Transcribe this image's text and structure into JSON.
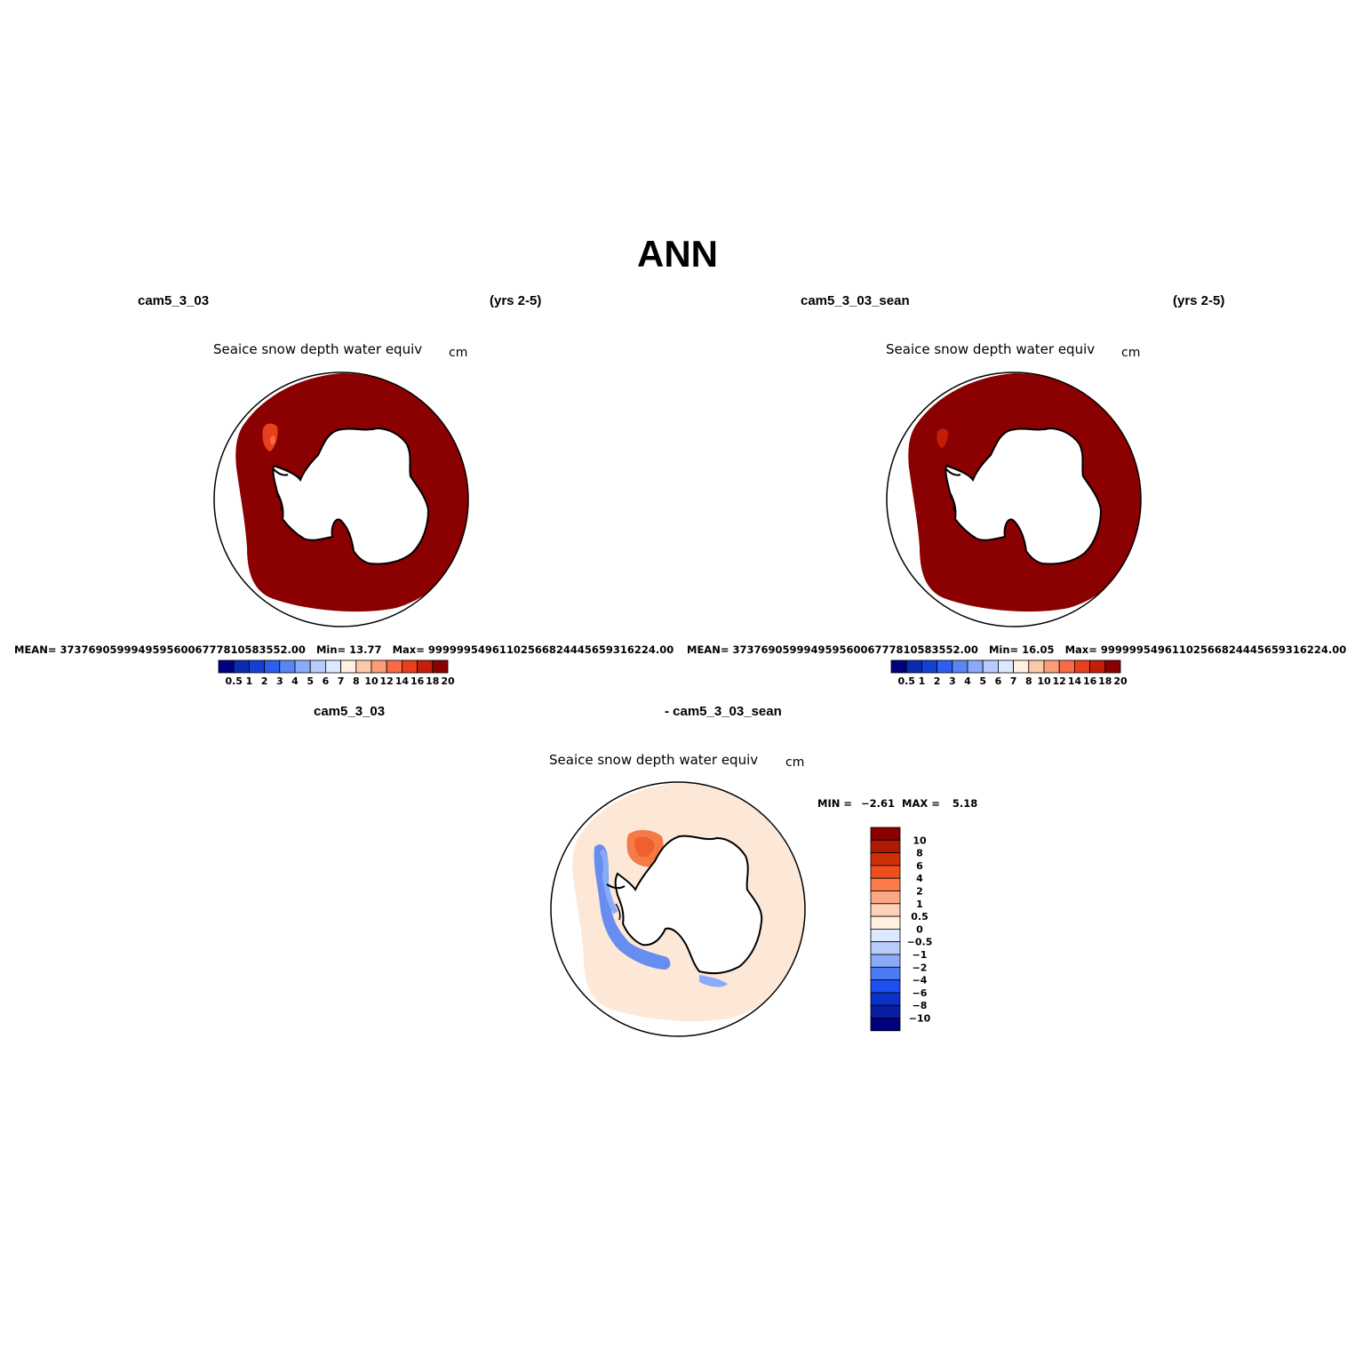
{
  "title": "ANN",
  "panels": [
    {
      "case_label": "cam5_3_03",
      "years_label": "(yrs 2-5)",
      "variable_title": "Seaice snow depth water equiv",
      "units": "cm",
      "stats": {
        "mean_label": "MEAN=",
        "mean_value": "3737690599949595600677781058355 2.00",
        "min_label": "Min=",
        "min_value": "13.77",
        "max_label": "Max=",
        "max_value": "99999954961102566824445659316224.00"
      },
      "colorbar_ticks": [
        "0.5",
        "1",
        "2",
        "3",
        "4",
        "5",
        "6",
        "7",
        "8",
        "10",
        "12",
        "14",
        "16",
        "18",
        "20"
      ],
      "colorbar_colors": [
        "#00007f",
        "#0a2bb0",
        "#1440d4",
        "#2c5ef0",
        "#5a86f5",
        "#8aaafa",
        "#b8ccfc",
        "#dce8ff",
        "#fff0e0",
        "#fccaaa",
        "#fb9d78",
        "#f96a45",
        "#e8401c",
        "#c21e08",
        "#8b0000"
      ]
    },
    {
      "case_label": "cam5_3_03_sean",
      "years_label": "(yrs 2-5)",
      "variable_title": "Seaice snow depth water equiv",
      "units": "cm",
      "stats": {
        "mean_label": "MEAN=",
        "mean_value": "37376905999495956006777810583552.00",
        "min_label": "Min=",
        "min_value": "16.05",
        "max_label": "Max=",
        "max_value": "99999954961102566824445659316224.00"
      },
      "colorbar_ticks": [
        "0.5",
        "1",
        "2",
        "3",
        "4",
        "5",
        "6",
        "7",
        "8",
        "10",
        "12",
        "14",
        "16",
        "18",
        "20"
      ],
      "colorbar_colors": [
        "#00007f",
        "#0a2bb0",
        "#1440d4",
        "#2c5ef0",
        "#5a86f5",
        "#8aaafa",
        "#b8ccfc",
        "#dce8ff",
        "#fff0e0",
        "#fccaaa",
        "#fb9d78",
        "#f96a45",
        "#e8401c",
        "#c21e08",
        "#8b0000"
      ]
    }
  ],
  "difference_panel": {
    "case_label_left": "cam5_3_03",
    "case_label_right": "- cam5_3_03_sean",
    "variable_title": "Seaice snow depth water equiv",
    "units": "cm",
    "min_label": "MIN =",
    "min_value": "−2.61",
    "max_label": "MAX =",
    "max_value": "5.18",
    "colorbar_ticks": [
      "10",
      "8",
      "6",
      "4",
      "2",
      "1",
      "0.5",
      "0",
      "−0.5",
      "−1",
      "−2",
      "−4",
      "−6",
      "−8",
      "−10"
    ],
    "colorbar_colors": [
      "#8b0000",
      "#b01a04",
      "#d02f0a",
      "#f04e1c",
      "#fb7a4a",
      "#fca884",
      "#fdd0b8",
      "#fff0e0",
      "#dce8ff",
      "#b8ccfc",
      "#8aaafa",
      "#4c7cf5",
      "#1d50f0",
      "#0a32c8",
      "#0a1ea0",
      "#00007f"
    ]
  }
}
